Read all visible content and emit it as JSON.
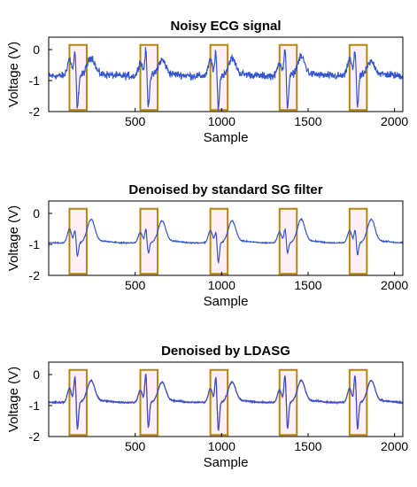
{
  "chart_data": [
    {
      "type": "line",
      "title": "Noisy ECG signal",
      "xlabel": "Sample",
      "ylabel": "Voltage (V)",
      "xlim": [
        0,
        2048
      ],
      "ylim": [
        -2,
        0.4
      ],
      "xticks": [
        500,
        1000,
        1500,
        2000
      ],
      "yticks": [
        0,
        -1,
        -2
      ],
      "grid": false,
      "noise": 0.13,
      "series": [
        {
          "color": "#3355cc",
          "baseline": -0.85,
          "beats": [
            {
              "x": 160,
              "q": -0.3,
              "r": -0.1,
              "s": -1.95,
              "t": -0.25
            },
            {
              "x": 570,
              "q": -0.4,
              "r": 0.0,
              "s": -1.85,
              "t": -0.35
            },
            {
              "x": 975,
              "q": -0.35,
              "r": -0.1,
              "s": -1.9,
              "t": -0.3
            },
            {
              "x": 1375,
              "q": -0.4,
              "r": 0.0,
              "s": -1.9,
              "t": -0.25
            },
            {
              "x": 1780,
              "q": -0.3,
              "r": -0.05,
              "s": -1.85,
              "t": -0.4
            }
          ]
        }
      ],
      "highlight_boxes": [
        {
          "x": [
            120,
            220
          ],
          "y": [
            -1.95,
            0.15
          ]
        },
        {
          "x": [
            530,
            630
          ],
          "y": [
            -1.95,
            0.15
          ]
        },
        {
          "x": [
            935,
            1035
          ],
          "y": [
            -1.95,
            0.15
          ]
        },
        {
          "x": [
            1335,
            1435
          ],
          "y": [
            -1.95,
            0.15
          ]
        },
        {
          "x": [
            1740,
            1840
          ],
          "y": [
            -1.95,
            0.15
          ]
        }
      ]
    },
    {
      "type": "line",
      "title": "Denoised by standard SG filter",
      "xlabel": "Sample",
      "ylabel": "Voltage (V)",
      "xlim": [
        0,
        2048
      ],
      "ylim": [
        -2,
        0.4
      ],
      "xticks": [
        500,
        1000,
        1500,
        2000
      ],
      "yticks": [
        0,
        -1,
        -2
      ],
      "grid": false,
      "noise": 0.02,
      "series": [
        {
          "color": "#3355cc",
          "baseline": -0.95,
          "beats": [
            {
              "x": 160,
              "q": -0.5,
              "r": -0.55,
              "s": -1.4,
              "t": -0.2
            },
            {
              "x": 570,
              "q": -0.6,
              "r": -0.5,
              "s": -1.3,
              "t": -0.25
            },
            {
              "x": 975,
              "q": -0.55,
              "r": -0.6,
              "s": -1.6,
              "t": -0.25
            },
            {
              "x": 1375,
              "q": -0.6,
              "r": -0.5,
              "s": -1.3,
              "t": -0.2
            },
            {
              "x": 1780,
              "q": -0.55,
              "r": -0.55,
              "s": -1.35,
              "t": -0.2
            }
          ]
        }
      ],
      "highlight_boxes": [
        {
          "x": [
            120,
            220
          ],
          "y": [
            -1.95,
            0.15
          ]
        },
        {
          "x": [
            530,
            630
          ],
          "y": [
            -1.95,
            0.15
          ]
        },
        {
          "x": [
            935,
            1035
          ],
          "y": [
            -1.95,
            0.15
          ]
        },
        {
          "x": [
            1335,
            1435
          ],
          "y": [
            -1.95,
            0.15
          ]
        },
        {
          "x": [
            1740,
            1840
          ],
          "y": [
            -1.95,
            0.15
          ]
        }
      ]
    },
    {
      "type": "line",
      "title": "Denoised by LDASG",
      "xlabel": "Sample",
      "ylabel": "Voltage (V)",
      "xlim": [
        0,
        2048
      ],
      "ylim": [
        -2,
        0.4
      ],
      "xticks": [
        500,
        1000,
        1500,
        2000
      ],
      "yticks": [
        0,
        -1,
        -2
      ],
      "grid": false,
      "noise": 0.03,
      "series": [
        {
          "color": "#cc3366",
          "baseline": -0.9,
          "beats": [
            {
              "x": 160,
              "q": -0.45,
              "r": -0.05,
              "s": -1.8,
              "t": -0.2
            },
            {
              "x": 570,
              "q": -0.5,
              "r": 0.05,
              "s": -1.75,
              "t": -0.25
            },
            {
              "x": 975,
              "q": -0.45,
              "r": -0.05,
              "s": -1.85,
              "t": -0.25
            },
            {
              "x": 1375,
              "q": -0.5,
              "r": 0.0,
              "s": -1.8,
              "t": -0.2
            },
            {
              "x": 1780,
              "q": -0.45,
              "r": 0.0,
              "s": -1.8,
              "t": -0.2
            }
          ]
        },
        {
          "color": "#3355cc",
          "baseline": -0.9,
          "beats": [
            {
              "x": 160,
              "q": -0.45,
              "r": -0.05,
              "s": -1.8,
              "t": -0.2
            },
            {
              "x": 570,
              "q": -0.5,
              "r": 0.05,
              "s": -1.75,
              "t": -0.25
            },
            {
              "x": 975,
              "q": -0.45,
              "r": -0.05,
              "s": -1.85,
              "t": -0.25
            },
            {
              "x": 1375,
              "q": -0.5,
              "r": 0.0,
              "s": -1.8,
              "t": -0.2
            },
            {
              "x": 1780,
              "q": -0.45,
              "r": 0.0,
              "s": -1.8,
              "t": -0.2
            }
          ]
        }
      ],
      "highlight_boxes": [
        {
          "x": [
            120,
            220
          ],
          "y": [
            -1.95,
            0.15
          ]
        },
        {
          "x": [
            530,
            630
          ],
          "y": [
            -1.95,
            0.15
          ]
        },
        {
          "x": [
            935,
            1035
          ],
          "y": [
            -1.95,
            0.15
          ]
        },
        {
          "x": [
            1335,
            1435
          ],
          "y": [
            -1.95,
            0.15
          ]
        },
        {
          "x": [
            1740,
            1840
          ],
          "y": [
            -1.95,
            0.15
          ]
        }
      ]
    }
  ],
  "colors": {
    "box_stroke": "#b8860b",
    "box_fill": "#fff0f5",
    "axis": "#000000"
  }
}
